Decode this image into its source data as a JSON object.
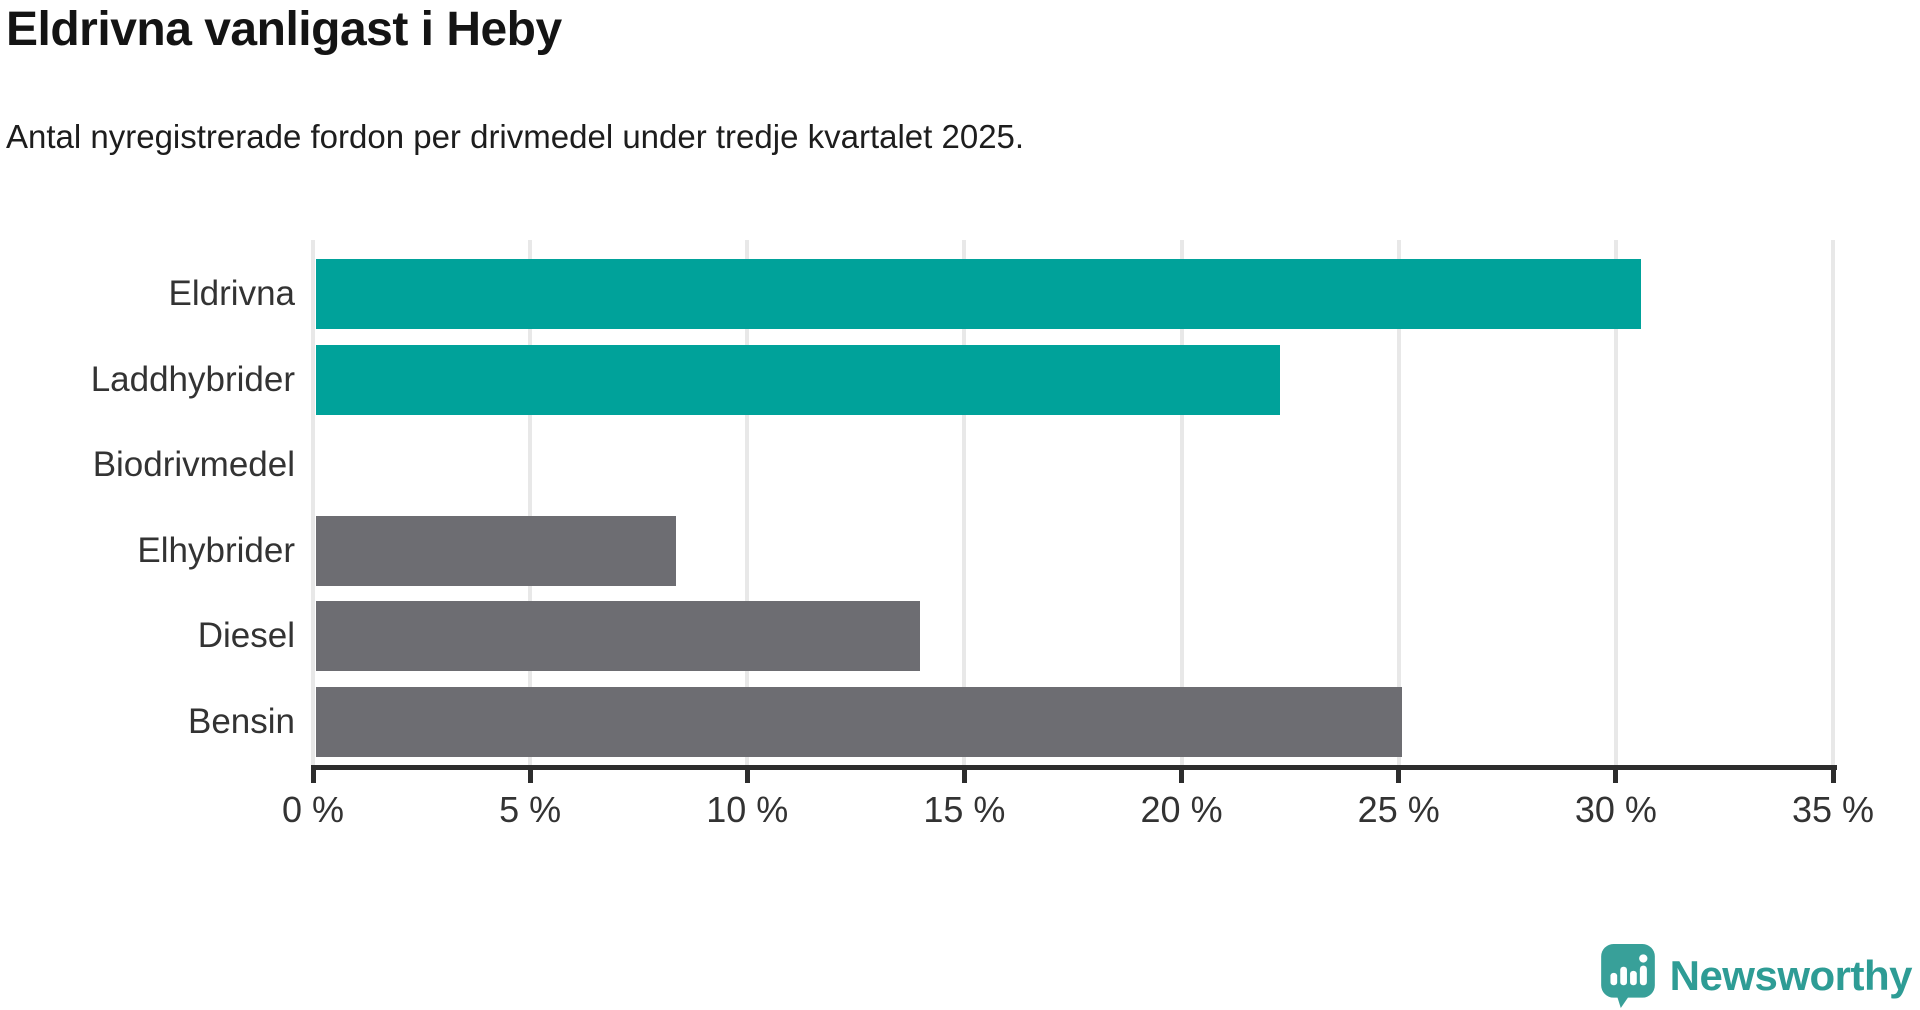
{
  "header": {
    "title": "Eldrivna vanligast i Heby",
    "subtitle": "Antal nyregistrerade fordon per drivmedel under tredje kvartalet 2025."
  },
  "branding": {
    "logo_text": "Newsworthy",
    "logo_icon": "newsworthy-speech-bubble-barchart-icon",
    "brand_color": "#2e9c95",
    "icon_fill": "#38a099"
  },
  "colors": {
    "highlight_bar": "#00a29a",
    "default_bar": "#6d6d72",
    "gridline": "#e8e8e8",
    "axis": "#2d2d2d",
    "tick_text": "#333333",
    "category_text": "#333333"
  },
  "chart_data": {
    "type": "bar",
    "orientation": "horizontal",
    "title": "Eldrivna vanligast i Heby",
    "subtitle": "Antal nyregistrerade fordon per drivmedel under tredje kvartalet 2025.",
    "categories": [
      "Eldrivna",
      "Laddhybrider",
      "Biodrivmedel",
      "Elhybrider",
      "Diesel",
      "Bensin"
    ],
    "values": [
      30.5,
      22.2,
      0,
      8.3,
      13.9,
      25.0
    ],
    "unit": "%",
    "bar_colors": [
      "#00a29a",
      "#00a29a",
      "#6d6d72",
      "#6d6d72",
      "#6d6d72",
      "#6d6d72"
    ],
    "xlabel": "",
    "ylabel": "",
    "xlim": [
      0,
      35
    ],
    "x_ticks": [
      0,
      5,
      10,
      15,
      20,
      25,
      30,
      35
    ],
    "x_tick_labels": [
      "0 %",
      "5 %",
      "10 %",
      "15 %",
      "20 %",
      "25 %",
      "30 %",
      "35 %"
    ],
    "grid": "vertical-gridlines-on",
    "legend": "none"
  }
}
